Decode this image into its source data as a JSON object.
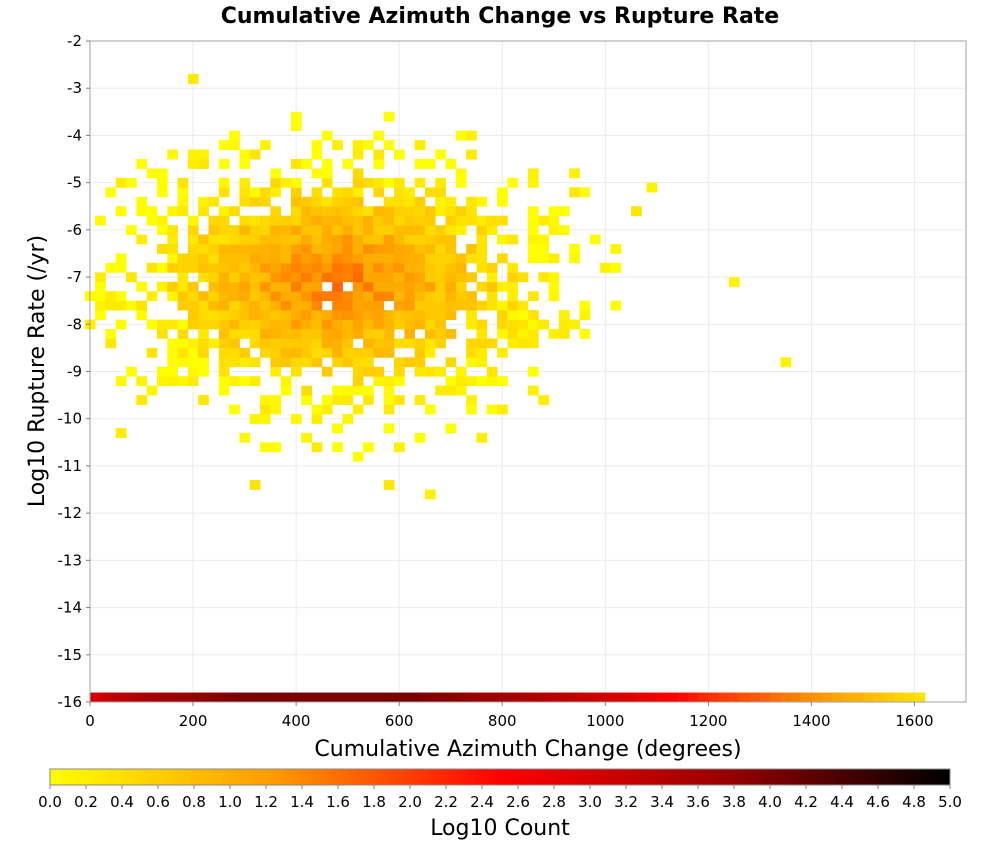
{
  "chart_data": {
    "type": "heatmap",
    "title": "Cumulative Azimuth Change vs Rupture Rate",
    "xlabel": "Cumulative Azimuth Change (degrees)",
    "ylabel": "Log10 Rupture Rate (/yr)",
    "xlim": [
      0,
      1700
    ],
    "ylim": [
      -16,
      -2
    ],
    "x_ticks": [
      "0",
      "200",
      "400",
      "600",
      "800",
      "1000",
      "1200",
      "1400",
      "1600"
    ],
    "y_ticks": [
      "-2",
      "-3",
      "-4",
      "-5",
      "-6",
      "-7",
      "-8",
      "-9",
      "-10",
      "-11",
      "-12",
      "-13",
      "-14",
      "-15",
      "-16"
    ],
    "grid": true,
    "bin_width_x": 20,
    "bin_height_y": 0.2,
    "colorbar": {
      "label": "Log10 Count",
      "range": [
        0,
        5
      ],
      "ticks": [
        "0.0",
        "0.2",
        "0.4",
        "0.6",
        "0.8",
        "1.0",
        "1.2",
        "1.4",
        "1.6",
        "1.8",
        "2.0",
        "2.2",
        "2.4",
        "2.6",
        "2.8",
        "3.0",
        "3.2",
        "3.4",
        "3.6",
        "3.8",
        "4.0",
        "4.2",
        "4.4",
        "4.6",
        "4.8",
        "5.0"
      ],
      "colors": [
        "#ffff00",
        "#ff9900",
        "#ff0000",
        "#990000",
        "#000000"
      ]
    },
    "main_cloud": {
      "x_center": 480,
      "x_spread": 300,
      "y_center": -7.1,
      "y_spread": 1.9,
      "x_range": [
        0,
        1140
      ],
      "y_range": [
        -11.2,
        -3.4
      ],
      "peak_log10_count": 1.55
    },
    "outlier_cells": [
      [
        200,
        -2.8
      ],
      [
        1250,
        -7.1
      ],
      [
        1350,
        -8.8
      ],
      [
        660,
        -11.6
      ],
      [
        60,
        -10.3
      ],
      [
        580,
        -11.4
      ],
      [
        320,
        -11.4
      ],
      [
        1090,
        -5.1
      ],
      [
        1060,
        -5.6
      ]
    ],
    "bottom_band": {
      "y": -16,
      "x": [
        0,
        20,
        40,
        60,
        80,
        100,
        120,
        140,
        160,
        180,
        200,
        220,
        240,
        260,
        280,
        300,
        320,
        340,
        360,
        380,
        400,
        420,
        440,
        460,
        480,
        500,
        520,
        540,
        560,
        580,
        600,
        620,
        640,
        660,
        680,
        700,
        720,
        740,
        760,
        780,
        800,
        820,
        840,
        860,
        880,
        900,
        920,
        940,
        960,
        980,
        1000,
        1020,
        1040,
        1060,
        1080,
        1100,
        1120,
        1140,
        1160,
        1180,
        1200,
        1220,
        1240,
        1260,
        1280,
        1300,
        1320,
        1340,
        1360,
        1380,
        1400,
        1420,
        1440,
        1460,
        1480,
        1500,
        1520,
        1540,
        1560,
        1580,
        1600
      ],
      "log10_count": [
        3.05,
        3.2,
        3.3,
        3.4,
        3.5,
        3.55,
        3.6,
        3.65,
        3.7,
        3.75,
        3.8,
        3.85,
        3.9,
        3.95,
        4.0,
        4.0,
        4.0,
        4.0,
        4.0,
        4.0,
        4.0,
        4.0,
        4.0,
        4.0,
        4.0,
        4.0,
        4.0,
        4.0,
        4.0,
        4.0,
        4.0,
        4.0,
        3.95,
        3.9,
        3.9,
        3.85,
        3.8,
        3.75,
        3.7,
        3.65,
        3.6,
        3.55,
        3.5,
        3.45,
        3.4,
        3.35,
        3.3,
        3.2,
        3.15,
        3.1,
        3.0,
        2.95,
        2.9,
        2.8,
        2.7,
        2.6,
        2.5,
        2.4,
        2.3,
        2.2,
        2.1,
        2.0,
        1.95,
        1.85,
        1.8,
        1.7,
        1.6,
        1.5,
        1.45,
        1.35,
        1.3,
        1.2,
        1.1,
        1.0,
        0.95,
        0.85,
        0.75,
        0.65,
        0.55,
        0.45,
        0.35
      ]
    }
  }
}
